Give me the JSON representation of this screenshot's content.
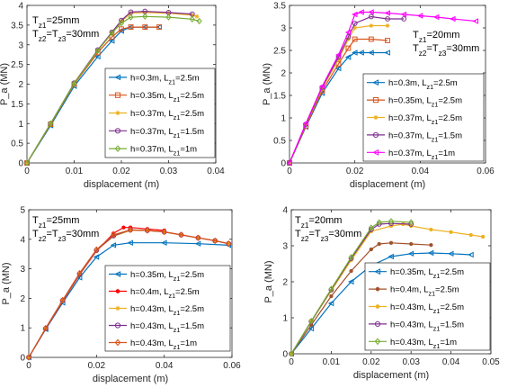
{
  "chart_data": [
    {
      "type": "line",
      "xlabel": "displacement (m)",
      "ylabel": "P_a (MN)",
      "xlim": [
        0,
        0.04
      ],
      "ylim": [
        0,
        4
      ],
      "xticks": [
        "0",
        "0.01",
        "0.02",
        "0.03",
        "0.04"
      ],
      "yticks": [
        "0",
        "0.5",
        "1",
        "1.5",
        "2",
        "2.5",
        "3",
        "3.5",
        "4"
      ],
      "annotation": [
        "T_{z1}=25mm",
        "T_{z2}=T_{z3}=30mm"
      ],
      "legend_position": "bottom-right",
      "series": [
        {
          "name": "h=0.3m, L_{z1}=2.5m",
          "color": "#0072bd",
          "marker": "triangle-left",
          "x": [
            0,
            0.005,
            0.01,
            0.015,
            0.018,
            0.02,
            0.022,
            0.025,
            0.028
          ],
          "y": [
            0,
            0.95,
            1.95,
            2.7,
            3.1,
            3.35,
            3.45,
            3.45,
            3.45
          ]
        },
        {
          "name": "h=0.35m, L_{z1}=2.5m",
          "color": "#d95319",
          "marker": "square",
          "x": [
            0,
            0.005,
            0.01,
            0.015,
            0.018,
            0.02,
            0.022,
            0.025,
            0.028
          ],
          "y": [
            0,
            0.98,
            2.0,
            2.8,
            3.2,
            3.4,
            3.45,
            3.45,
            3.45
          ]
        },
        {
          "name": "h=0.37m, L_{z1}=2.5m",
          "color": "#edb120",
          "marker": "star",
          "x": [
            0,
            0.005,
            0.01,
            0.015,
            0.018,
            0.02,
            0.022,
            0.025,
            0.03,
            0.035,
            0.036
          ],
          "y": [
            0,
            1.0,
            2.02,
            2.85,
            3.3,
            3.6,
            3.8,
            3.82,
            3.8,
            3.75,
            3.72
          ]
        },
        {
          "name": "h=0.37m, L_{z1}=1.5m",
          "color": "#7e2f8e",
          "marker": "circle",
          "x": [
            0,
            0.005,
            0.01,
            0.015,
            0.018,
            0.02,
            0.022,
            0.025,
            0.03,
            0.035
          ],
          "y": [
            0,
            1.0,
            2.03,
            2.87,
            3.32,
            3.62,
            3.83,
            3.85,
            3.82,
            3.78
          ]
        },
        {
          "name": "h=0.37m, L_{z1}=1m",
          "color": "#77ac30",
          "marker": "diamond",
          "x": [
            0,
            0.005,
            0.01,
            0.015,
            0.018,
            0.02,
            0.022,
            0.025,
            0.03,
            0.035,
            0.0365
          ],
          "y": [
            0,
            1.0,
            2.02,
            2.85,
            3.3,
            3.55,
            3.7,
            3.72,
            3.7,
            3.65,
            3.6
          ]
        }
      ]
    },
    {
      "type": "line",
      "xlabel": "displacement (m)",
      "ylabel": "P_a (MN)",
      "xlim": [
        0,
        0.06
      ],
      "ylim": [
        0,
        3.5
      ],
      "xticks": [
        "0",
        "0.02",
        "0.04",
        "0.06"
      ],
      "yticks": [
        "0",
        "0.5",
        "1",
        "1.5",
        "2",
        "2.5",
        "3",
        "3.5"
      ],
      "annotation": [
        "T_{z1}=20mm",
        "T_{z2}=T_{z3}=30mm"
      ],
      "legend_position": "bottom-right",
      "series": [
        {
          "name": "h=0.3m, L_{z1}=2.5m",
          "color": "#0072bd",
          "marker": "triangle-left",
          "x": [
            0,
            0.005,
            0.01,
            0.015,
            0.018,
            0.02,
            0.022,
            0.025,
            0.03
          ],
          "y": [
            0,
            0.8,
            1.55,
            2.1,
            2.35,
            2.45,
            2.45,
            2.45,
            2.45
          ]
        },
        {
          "name": "h=0.35m, L_{z1}=2.5m",
          "color": "#d95319",
          "marker": "square",
          "x": [
            0,
            0.005,
            0.01,
            0.015,
            0.018,
            0.02,
            0.025,
            0.03
          ],
          "y": [
            0,
            0.82,
            1.6,
            2.2,
            2.55,
            2.75,
            2.75,
            2.72
          ]
        },
        {
          "name": "h=0.37m, L_{z1}=2.5m",
          "color": "#edb120",
          "marker": "star",
          "x": [
            0,
            0.005,
            0.01,
            0.015,
            0.018,
            0.02,
            0.025,
            0.03
          ],
          "y": [
            0,
            0.85,
            1.65,
            2.3,
            2.75,
            3.0,
            3.05,
            3.05
          ]
        },
        {
          "name": "h=0.37m, L_{z1}=1.5m",
          "color": "#7e2f8e",
          "marker": "circle",
          "x": [
            0,
            0.005,
            0.01,
            0.015,
            0.018,
            0.02,
            0.025,
            0.03,
            0.035
          ],
          "y": [
            0,
            0.86,
            1.68,
            2.35,
            2.8,
            3.1,
            3.25,
            3.2,
            3.2
          ]
        },
        {
          "name": "h=0.37m, L_{z1}=1m",
          "color": "#ff00ff",
          "marker": "triangle-left",
          "x": [
            0,
            0.005,
            0.01,
            0.015,
            0.018,
            0.02,
            0.022,
            0.025,
            0.03,
            0.035,
            0.04,
            0.045,
            0.05,
            0.057
          ],
          "y": [
            0,
            0.88,
            1.7,
            2.4,
            2.9,
            3.3,
            3.35,
            3.35,
            3.33,
            3.3,
            3.27,
            3.24,
            3.2,
            3.15
          ]
        }
      ]
    },
    {
      "type": "line",
      "xlabel": "displacement (m)",
      "ylabel": "P_a (MN)",
      "xlim": [
        0,
        0.06
      ],
      "ylim": [
        0,
        5
      ],
      "xticks": [
        "0",
        "0.02",
        "0.04",
        "0.06"
      ],
      "yticks": [
        "0",
        "1",
        "2",
        "3",
        "4",
        "5"
      ],
      "annotation": [
        "T_{z1}=25mm",
        "T_{z2}=T_{z3}=30mm"
      ],
      "legend_position": "bottom-right",
      "series": [
        {
          "name": "h=0.35m, L_{z1}=2.5m",
          "color": "#0072bd",
          "marker": "triangle-left",
          "x": [
            0,
            0.005,
            0.01,
            0.015,
            0.02,
            0.025,
            0.03,
            0.04,
            0.05,
            0.059
          ],
          "y": [
            0,
            0.95,
            1.85,
            2.7,
            3.4,
            3.8,
            3.88,
            3.88,
            3.85,
            3.8
          ]
        },
        {
          "name": "h=0.4m, L_{z1}=2.5m",
          "color": "#ff0000",
          "marker": "dot",
          "x": [
            0,
            0.005,
            0.01,
            0.015,
            0.02,
            0.025,
            0.028,
            0.03,
            0.035,
            0.04
          ],
          "y": [
            0,
            0.97,
            1.9,
            2.8,
            3.6,
            4.2,
            4.4,
            4.4,
            4.35,
            4.3
          ]
        },
        {
          "name": "h=0.43m, L_{z1}=2.5m",
          "color": "#edb120",
          "marker": "star",
          "x": [
            0,
            0.005,
            0.01,
            0.015,
            0.02,
            0.025,
            0.03,
            0.035,
            0.04,
            0.045,
            0.05,
            0.055,
            0.059
          ],
          "y": [
            0,
            0.98,
            1.92,
            2.82,
            3.62,
            4.1,
            4.3,
            4.3,
            4.25,
            4.15,
            4.05,
            3.95,
            3.85
          ]
        },
        {
          "name": "h=0.43m, L_{z1}=1.5m",
          "color": "#7e2f8e",
          "marker": "circle",
          "x": [
            0,
            0.005,
            0.01,
            0.015,
            0.02,
            0.025,
            0.03,
            0.035,
            0.04,
            0.045,
            0.05,
            0.055,
            0.059
          ],
          "y": [
            0,
            0.98,
            1.93,
            2.83,
            3.63,
            4.12,
            4.32,
            4.3,
            4.25,
            4.15,
            4.05,
            3.95,
            3.85
          ]
        },
        {
          "name": "h=0.43m, L_{z1}=1m",
          "color": "#d95319",
          "marker": "diamond",
          "x": [
            0,
            0.005,
            0.01,
            0.015,
            0.02,
            0.025,
            0.03,
            0.035,
            0.04,
            0.045,
            0.05,
            0.055,
            0.059
          ],
          "y": [
            0,
            0.99,
            1.94,
            2.85,
            3.65,
            4.15,
            4.32,
            4.3,
            4.25,
            4.15,
            4.05,
            3.95,
            3.85
          ]
        }
      ]
    },
    {
      "type": "line",
      "xlabel": "displacement (m)",
      "ylabel": "P_a (MN)",
      "xlim": [
        0,
        0.05
      ],
      "ylim": [
        0,
        4
      ],
      "xticks": [
        "0",
        "0.01",
        "0.02",
        "0.03",
        "0.04",
        "0.05"
      ],
      "yticks": [
        "0",
        "1",
        "2",
        "3",
        "4"
      ],
      "annotation": [
        "T_{z1}=20mm",
        "T_{z2}=T_{z3}=30mm"
      ],
      "legend_position": "bottom-right",
      "series": [
        {
          "name": "h=0.35m, L_{z1}=2.5m",
          "color": "#0072bd",
          "marker": "triangle-left",
          "x": [
            0,
            0.005,
            0.01,
            0.015,
            0.02,
            0.025,
            0.03,
            0.035,
            0.04,
            0.045
          ],
          "y": [
            0,
            0.7,
            1.4,
            2.0,
            2.45,
            2.7,
            2.78,
            2.8,
            2.78,
            2.75
          ]
        },
        {
          "name": "h=0.4m, L_{z1}=2.5m",
          "color": "#a0522d",
          "marker": "dot",
          "x": [
            0,
            0.005,
            0.01,
            0.015,
            0.02,
            0.022,
            0.025,
            0.03,
            0.035
          ],
          "y": [
            0,
            0.8,
            1.6,
            2.3,
            2.9,
            3.05,
            3.08,
            3.05,
            3.02
          ]
        },
        {
          "name": "h=0.43m, L_{z1}=2.5m",
          "color": "#edb120",
          "marker": "dot",
          "x": [
            0,
            0.005,
            0.01,
            0.015,
            0.02,
            0.025,
            0.028,
            0.03,
            0.035,
            0.04,
            0.045,
            0.048
          ],
          "y": [
            0,
            0.9,
            1.75,
            2.6,
            3.4,
            3.55,
            3.6,
            3.55,
            3.45,
            3.38,
            3.3,
            3.25
          ]
        },
        {
          "name": "h=0.43m, L_{z1}=1.5m",
          "color": "#7e2f8e",
          "marker": "circle",
          "x": [
            0,
            0.005,
            0.01,
            0.015,
            0.02,
            0.022,
            0.025,
            0.03
          ],
          "y": [
            0,
            0.9,
            1.78,
            2.65,
            3.45,
            3.6,
            3.62,
            3.6
          ]
        },
        {
          "name": "h=0.43m, L_{z1}=1m",
          "color": "#77ac30",
          "marker": "diamond",
          "x": [
            0,
            0.005,
            0.01,
            0.015,
            0.02,
            0.022,
            0.025,
            0.03
          ],
          "y": [
            0,
            0.91,
            1.8,
            2.68,
            3.5,
            3.65,
            3.68,
            3.65
          ]
        }
      ]
    }
  ]
}
